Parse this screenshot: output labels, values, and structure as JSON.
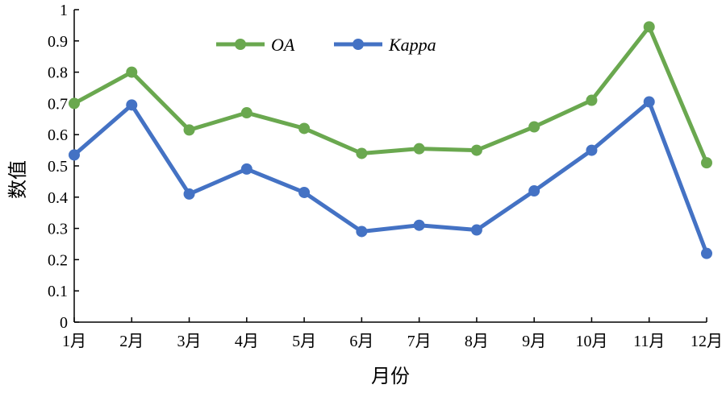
{
  "chart_data": {
    "type": "line",
    "categories": [
      "1月",
      "2月",
      "3月",
      "4月",
      "5月",
      "6月",
      "7月",
      "8月",
      "9月",
      "10月",
      "11月",
      "12月"
    ],
    "series": [
      {
        "name": "OA",
        "color": "#6aa84f",
        "values": [
          0.7,
          0.8,
          0.615,
          0.67,
          0.62,
          0.54,
          0.555,
          0.55,
          0.625,
          0.71,
          0.945,
          0.51
        ]
      },
      {
        "name": "Kappa",
        "color": "#4472c4",
        "values": [
          0.535,
          0.695,
          0.41,
          0.49,
          0.415,
          0.29,
          0.31,
          0.295,
          0.42,
          0.55,
          0.705,
          0.22
        ]
      }
    ],
    "xlabel": "月份",
    "ylabel": "数值",
    "ylim": [
      0,
      1
    ],
    "yticks": [
      "0",
      "0.1",
      "0.2",
      "0.3",
      "0.4",
      "0.5",
      "0.6",
      "0.7",
      "0.8",
      "0.9",
      "1"
    ],
    "grid": false,
    "legend_position": "top-center"
  }
}
